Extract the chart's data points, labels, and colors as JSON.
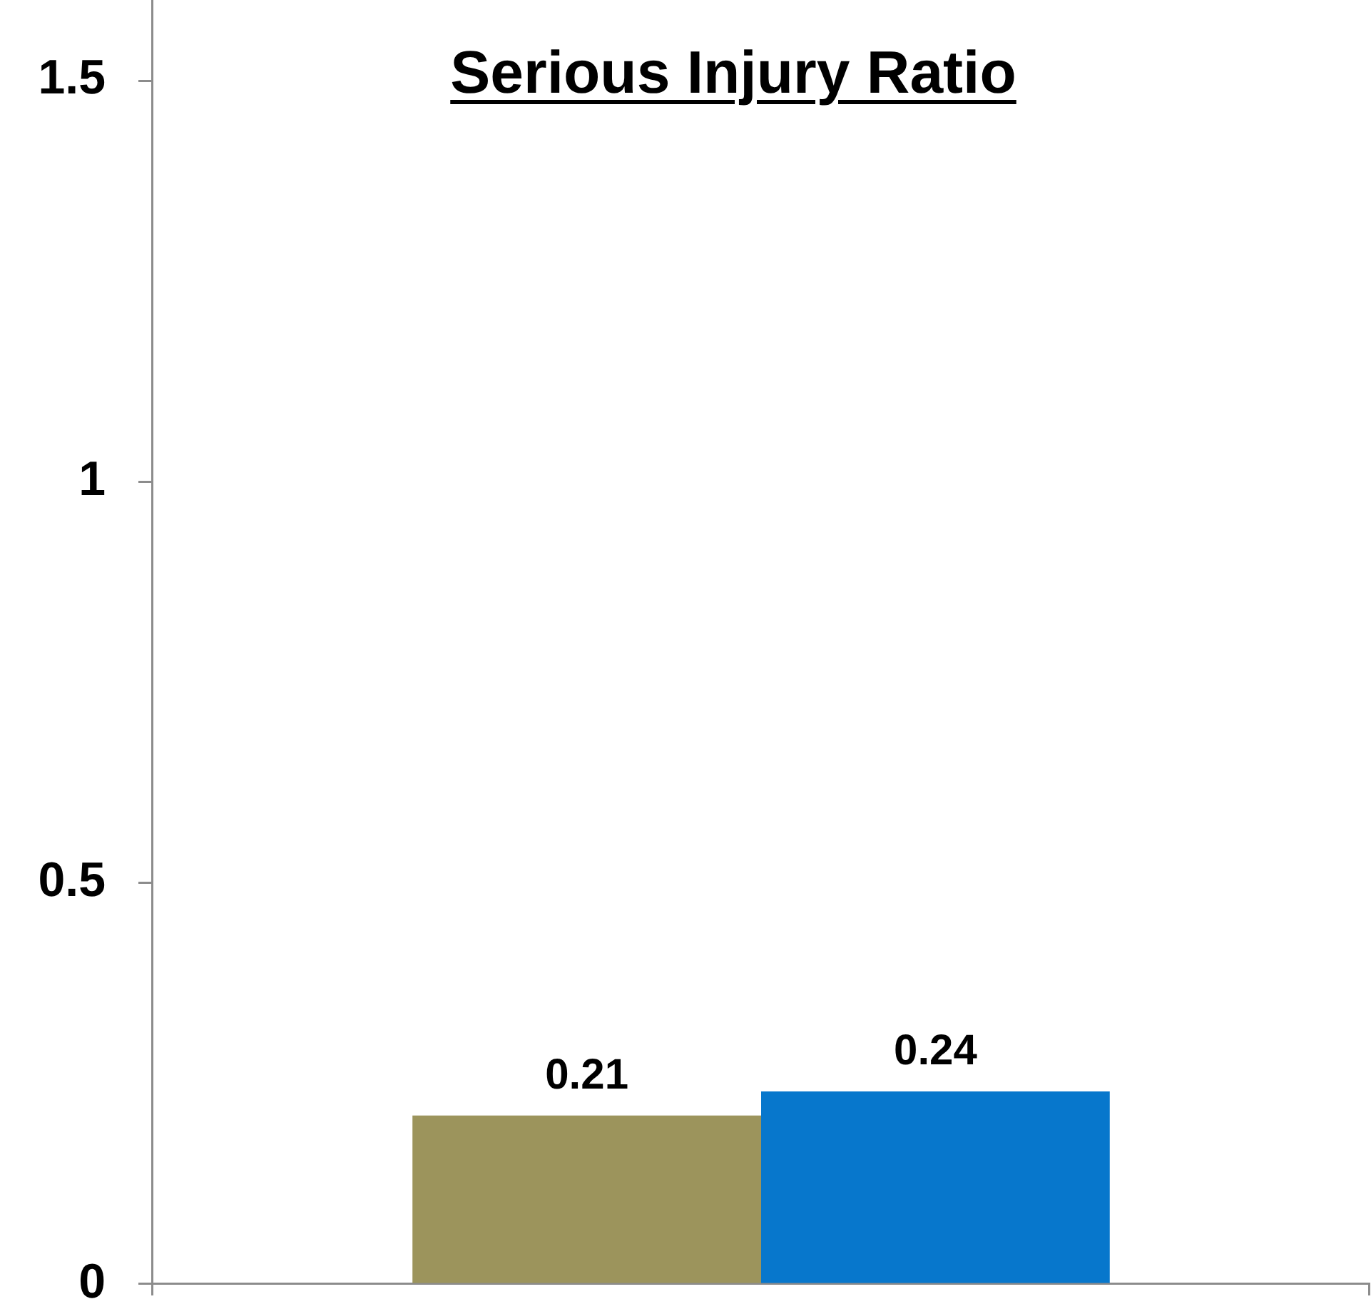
{
  "chart_data": {
    "type": "bar",
    "title": "Serious Injury Ratio",
    "categories": [
      null
    ],
    "series": [
      {
        "color": "#9c945c",
        "values": [
          0.21
        ]
      },
      {
        "color": "#0777cc",
        "values": [
          0.24
        ]
      }
    ],
    "ylim": [
      0,
      1.6
    ],
    "yticks": [
      0,
      0.5,
      1,
      1.5
    ],
    "grid": false,
    "legend": false,
    "data_labels": true
  }
}
